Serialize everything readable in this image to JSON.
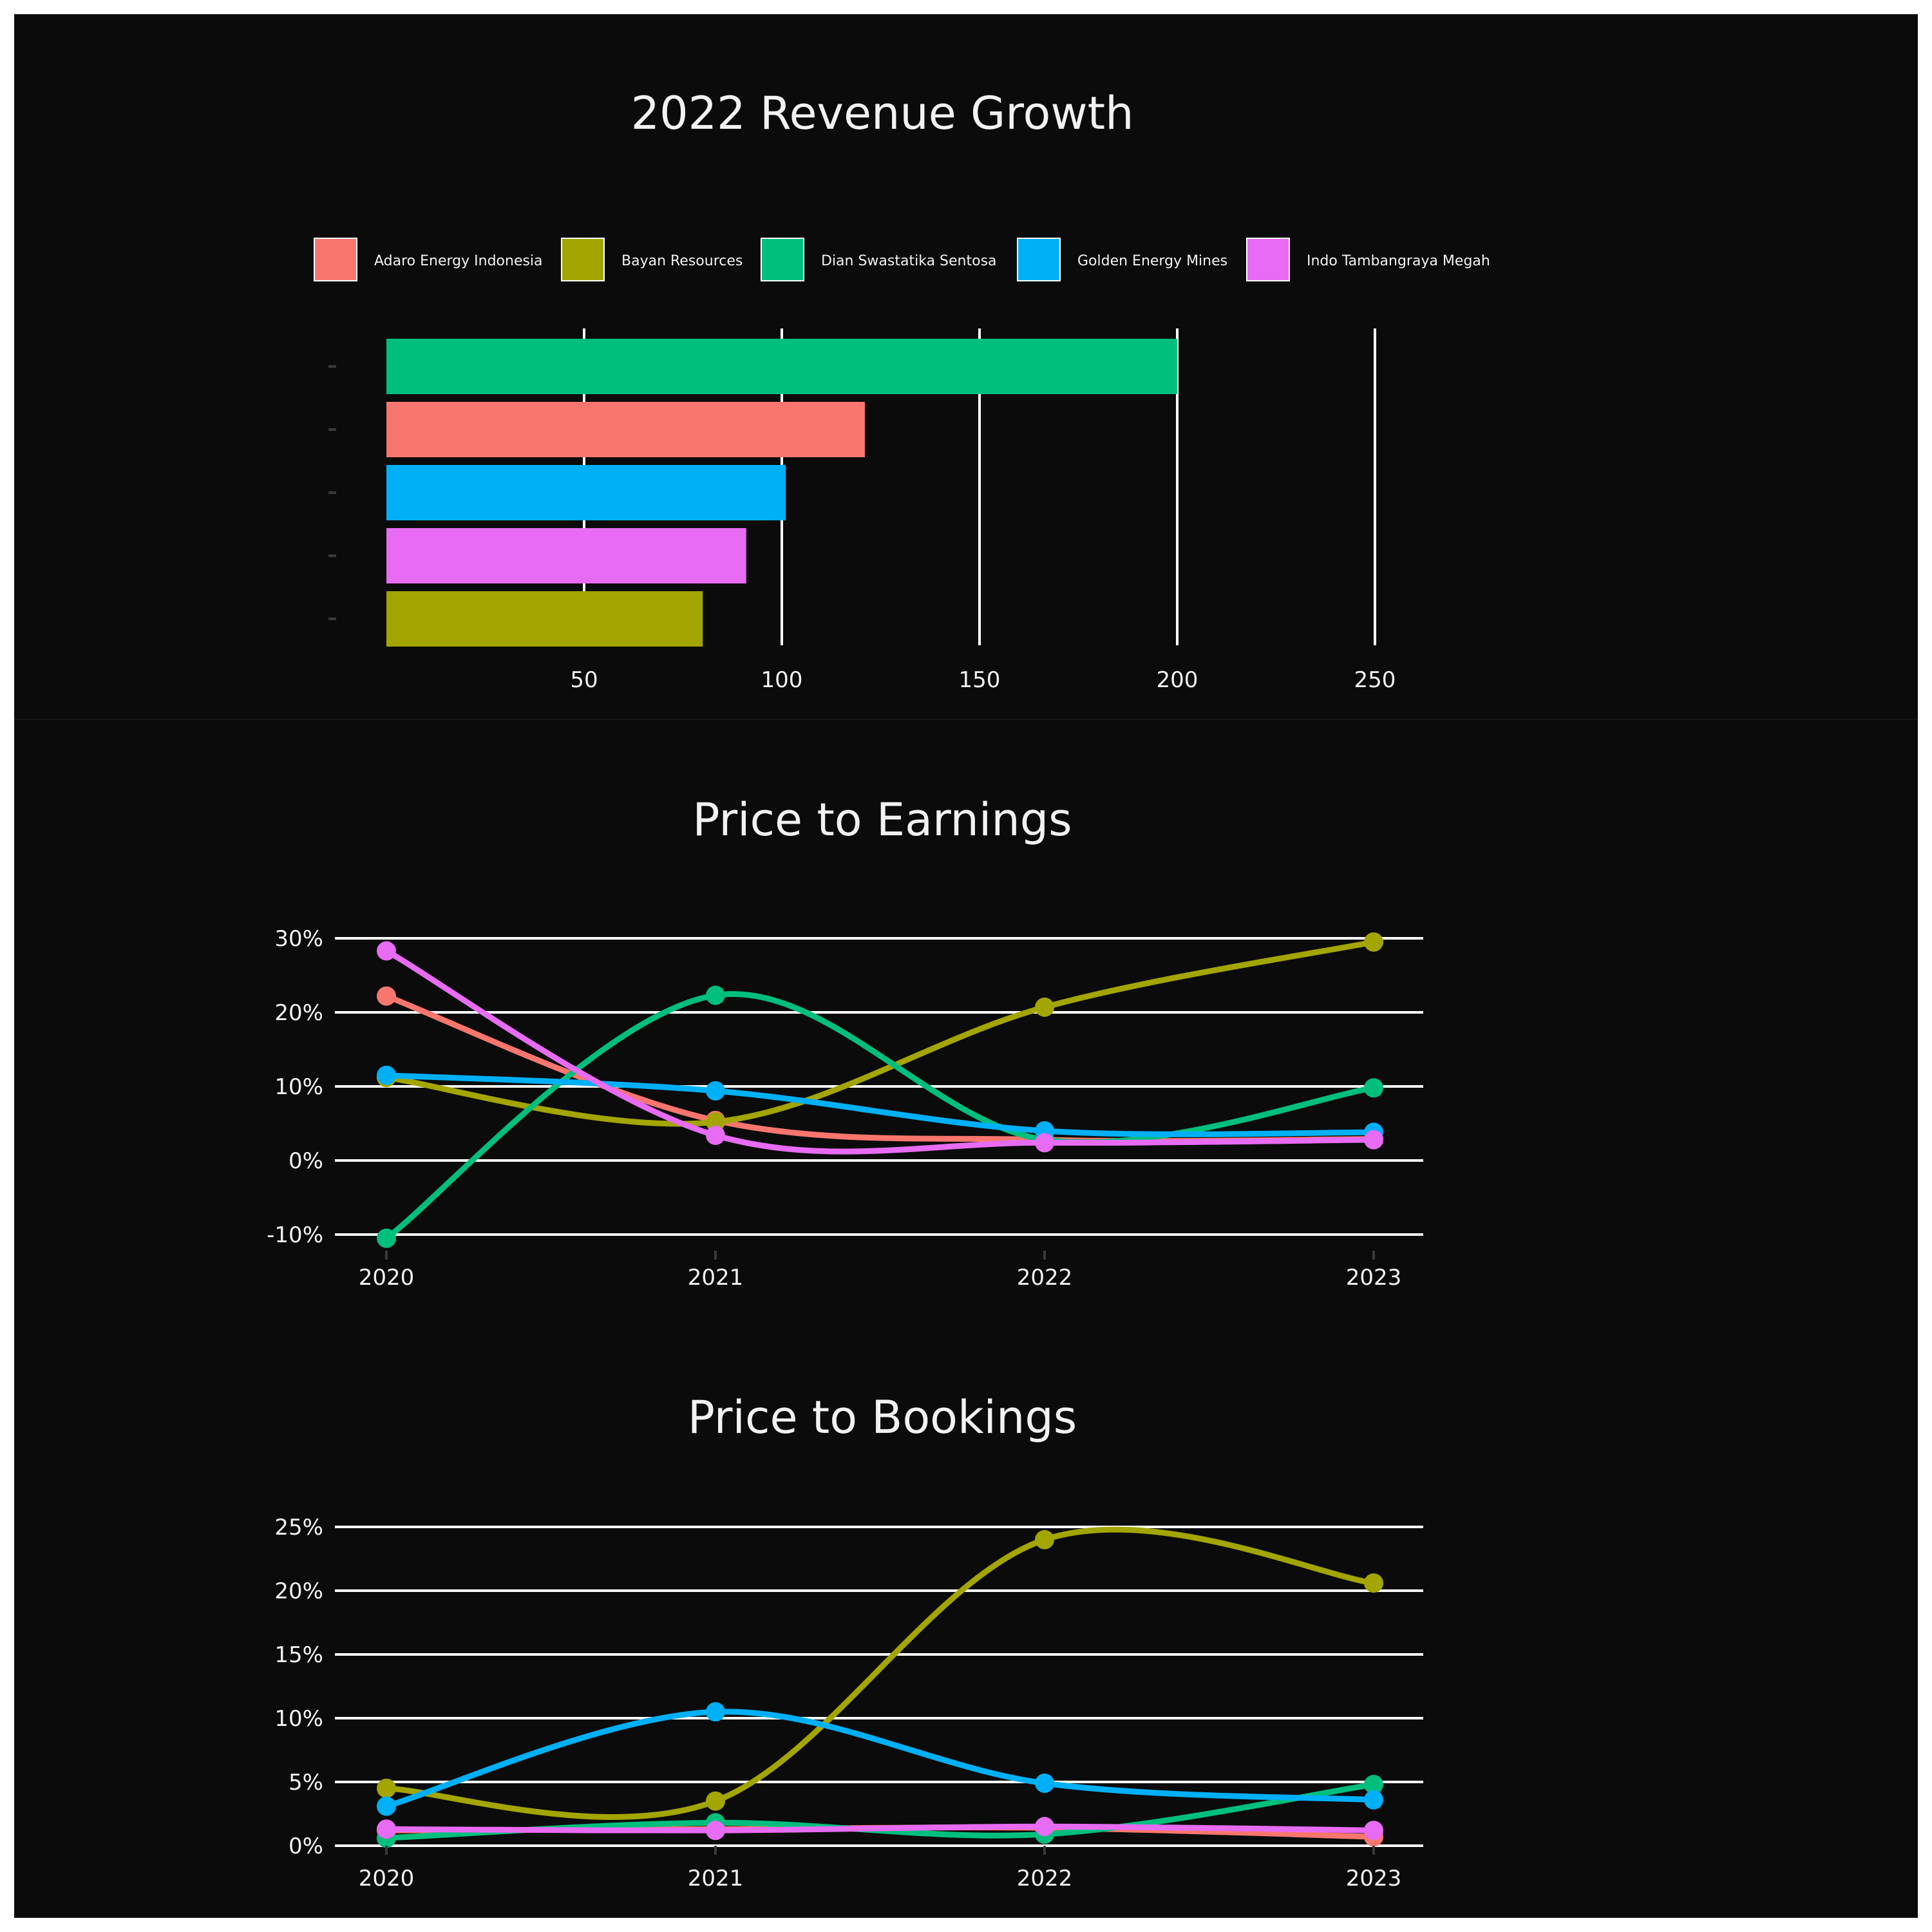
{
  "colors": {
    "background": "#0b0b0b",
    "text": "#f2f2f2",
    "grid": "#ffffff",
    "adaro": "#f8766d",
    "bayan": "#a3a500",
    "dian": "#00bf7d",
    "golden": "#00b0f6",
    "indo": "#e76bf3"
  },
  "legend": {
    "items": [
      {
        "name": "Adaro Energy Indonesia",
        "color": "#f8766d"
      },
      {
        "name": "Bayan Resources",
        "color": "#a3a500"
      },
      {
        "name": "Dian Swastatika Sentosa",
        "color": "#00bf7d"
      },
      {
        "name": "Golden Energy Mines",
        "color": "#00b0f6"
      },
      {
        "name": "Indo Tambangraya Megah",
        "color": "#e76bf3"
      }
    ]
  },
  "chart_data": [
    {
      "type": "bar",
      "orientation": "horizontal",
      "title": "2022 Revenue Growth",
      "categories": [
        "Dian Swastatika Sentosa",
        "Adaro Energy Indonesia",
        "Golden Energy Mines",
        "Indo Tambangraya Megah",
        "Bayan Resources"
      ],
      "values": [
        200,
        121,
        101,
        91,
        80
      ],
      "colors": [
        "#00bf7d",
        "#f8766d",
        "#00b0f6",
        "#e76bf3",
        "#a3a500"
      ],
      "xlim": [
        0,
        260
      ],
      "xticks": [
        50,
        100,
        150,
        200,
        250
      ],
      "xtick_labels": [
        "50",
        "100",
        "150",
        "200",
        "250"
      ],
      "xlabel": "",
      "ylabel": "",
      "legend_position": "top"
    },
    {
      "type": "line",
      "title": "Price to Earnings",
      "x": [
        "2020",
        "2021",
        "2022",
        "2023"
      ],
      "series": [
        {
          "name": "Adaro Energy Indonesia",
          "color": "#f8766d",
          "values": [
            22.2,
            5.4,
            2.8,
            2.9
          ]
        },
        {
          "name": "Bayan Resources",
          "color": "#a3a500",
          "values": [
            11.2,
            5.2,
            20.7,
            29.5
          ]
        },
        {
          "name": "Dian Swastatika Sentosa",
          "color": "#00bf7d",
          "values": [
            -10.5,
            22.3,
            2.8,
            9.8
          ]
        },
        {
          "name": "Golden Energy Mines",
          "color": "#00b0f6",
          "values": [
            11.5,
            9.4,
            4.0,
            3.8
          ]
        },
        {
          "name": "Indo Tambangraya Megah",
          "color": "#e76bf3",
          "values": [
            28.3,
            3.4,
            2.4,
            2.8
          ]
        }
      ],
      "ylim": [
        -11,
        30.5
      ],
      "yticks": [
        -10,
        0,
        10,
        20,
        30
      ],
      "ytick_labels": [
        "-10%",
        "0%",
        "10%",
        "20%",
        "30%"
      ],
      "xlabel": "",
      "ylabel": ""
    },
    {
      "type": "line",
      "title": "Price to Bookings",
      "x": [
        "2020",
        "2021",
        "2022",
        "2023"
      ],
      "series": [
        {
          "name": "Adaro Energy Indonesia",
          "color": "#f8766d",
          "values": [
            1.2,
            1.3,
            1.4,
            0.7
          ]
        },
        {
          "name": "Bayan Resources",
          "color": "#a3a500",
          "values": [
            4.5,
            3.5,
            24.0,
            20.6
          ]
        },
        {
          "name": "Dian Swastatika Sentosa",
          "color": "#00bf7d",
          "values": [
            0.6,
            1.8,
            0.9,
            4.8
          ]
        },
        {
          "name": "Golden Energy Mines",
          "color": "#00b0f6",
          "values": [
            3.1,
            10.5,
            4.9,
            3.6
          ]
        },
        {
          "name": "Indo Tambangraya Megah",
          "color": "#e76bf3",
          "values": [
            1.3,
            1.2,
            1.5,
            1.2
          ]
        }
      ],
      "ylim": [
        0,
        25
      ],
      "yticks": [
        0,
        5,
        10,
        15,
        20,
        25
      ],
      "ytick_labels": [
        "0%",
        "5%",
        "10%",
        "15%",
        "20%",
        "25%"
      ],
      "xlabel": "",
      "ylabel": ""
    }
  ]
}
